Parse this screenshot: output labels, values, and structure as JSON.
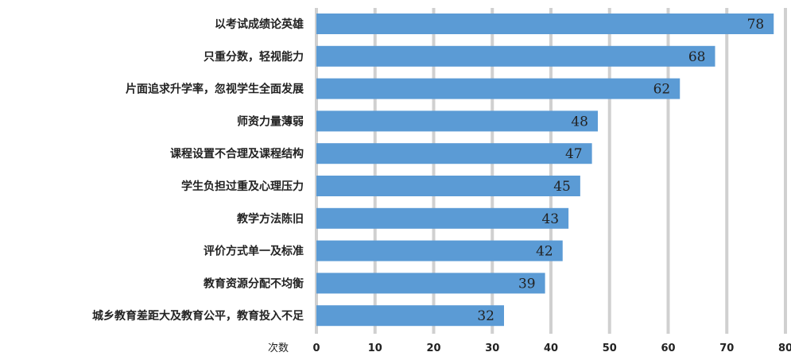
{
  "chart_data": {
    "type": "bar",
    "orientation": "horizontal",
    "categories": [
      "以考试成绩论英雄",
      "只重分数，轻视能力",
      "片面追求升学率，忽视学生全面发展",
      "师资力量薄弱",
      "课程设置不合理及课程结构",
      "学生负担过重及心理压力",
      "教学方法陈旧",
      "评价方式单一及标准",
      "教育资源分配不均衡",
      "城乡教育差距大及教育公平，教育投入不足"
    ],
    "values": [
      78,
      68,
      62,
      48,
      47,
      45,
      43,
      42,
      39,
      32
    ],
    "xlabel": "次数",
    "xlim": [
      0,
      80
    ],
    "x_ticks": [
      "0",
      "10",
      "20",
      "30",
      "40",
      "50",
      "60",
      "70",
      "80"
    ],
    "grid": "vertical",
    "bar_color": "#5b9bd5",
    "data_labels": "inside-end"
  }
}
